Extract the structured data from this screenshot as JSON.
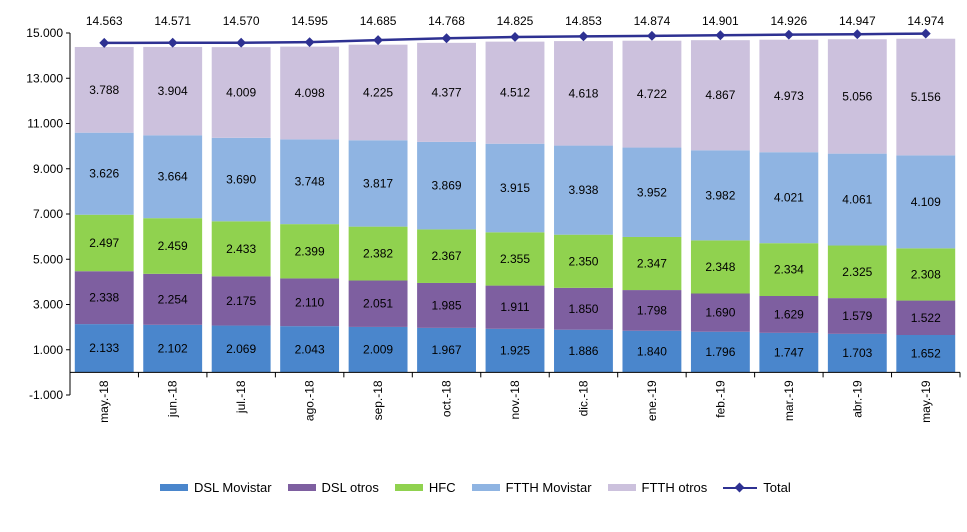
{
  "chart_data": {
    "type": "bar",
    "stacked": true,
    "categories": [
      "may.-18",
      "jun.-18",
      "jul.-18",
      "ago.-18",
      "sep.-18",
      "oct.-18",
      "nov.-18",
      "dic.-18",
      "ene.-19",
      "feb.-19",
      "mar.-19",
      "abr.-19",
      "may.-19"
    ],
    "series": [
      {
        "name": "DSL Movistar",
        "color": "#4a86cc",
        "values": [
          2133,
          2102,
          2069,
          2043,
          2009,
          1967,
          1925,
          1886,
          1840,
          1796,
          1747,
          1703,
          1652
        ]
      },
      {
        "name": "DSL otros",
        "color": "#7e5fa0",
        "values": [
          2338,
          2254,
          2175,
          2110,
          2051,
          1985,
          1911,
          1850,
          1798,
          1690,
          1629,
          1579,
          1522
        ]
      },
      {
        "name": "HFC",
        "color": "#90d24f",
        "values": [
          2497,
          2459,
          2433,
          2399,
          2382,
          2367,
          2355,
          2350,
          2347,
          2348,
          2334,
          2325,
          2308
        ]
      },
      {
        "name": "FTTH Movistar",
        "color": "#8fb4e2",
        "values": [
          3626,
          3664,
          3690,
          3748,
          3817,
          3869,
          3915,
          3938,
          3952,
          3982,
          4021,
          4061,
          4109
        ]
      },
      {
        "name": "FTTH otros",
        "color": "#ccc1dd",
        "values": [
          3788,
          3904,
          4009,
          4098,
          4225,
          4377,
          4512,
          4618,
          4722,
          4867,
          4973,
          5056,
          5156
        ]
      }
    ],
    "line": {
      "name": "Total",
      "color": "#2e3192",
      "values": [
        14563,
        14571,
        14570,
        14595,
        14685,
        14768,
        14825,
        14853,
        14874,
        14901,
        14926,
        14947,
        14974
      ]
    },
    "ylim": [
      -1000,
      15000
    ],
    "yticks": [
      -1000,
      1000,
      3000,
      5000,
      7000,
      9000,
      11000,
      13000,
      15000
    ],
    "ytick_labels": [
      "-1.000",
      "1.000",
      "3.000",
      "5.000",
      "7.000",
      "9.000",
      "11.000",
      "13.000",
      "15.000"
    ],
    "bar_labels": {
      "series": [
        [
          "2.133",
          "2.102",
          "2.069",
          "2.043",
          "2.009",
          "1.967",
          "1.925",
          "1.886",
          "1.840",
          "1.796",
          "1.747",
          "1.703",
          "1.652"
        ],
        [
          "2.338",
          "2.254",
          "2.175",
          "2.110",
          "2.051",
          "1.985",
          "1.911",
          "1.850",
          "1.798",
          "1.690",
          "1.629",
          "1.579",
          "1.522"
        ],
        [
          "2.497",
          "2.459",
          "2.433",
          "2.399",
          "2.382",
          "2.367",
          "2.355",
          "2.350",
          "2.347",
          "2.348",
          "2.334",
          "2.325",
          "2.308"
        ],
        [
          "3.626",
          "3.664",
          "3.690",
          "3.748",
          "3.817",
          "3.869",
          "3.915",
          "3.938",
          "3.952",
          "3.982",
          "4.021",
          "4.061",
          "4.109"
        ],
        [
          "3.788",
          "3.904",
          "4.009",
          "4.098",
          "4.225",
          "4.377",
          "4.512",
          "4.618",
          "4.722",
          "4.867",
          "4.973",
          "5.056",
          "5.156"
        ]
      ],
      "total": [
        "14.563",
        "14.571",
        "14.570",
        "14.595",
        "14.685",
        "14.768",
        "14.825",
        "14.853",
        "14.874",
        "14.901",
        "14.926",
        "14.947",
        "14.974"
      ]
    },
    "title": "",
    "xlabel": "",
    "ylabel": "",
    "grid": false,
    "legend_position": "bottom"
  }
}
